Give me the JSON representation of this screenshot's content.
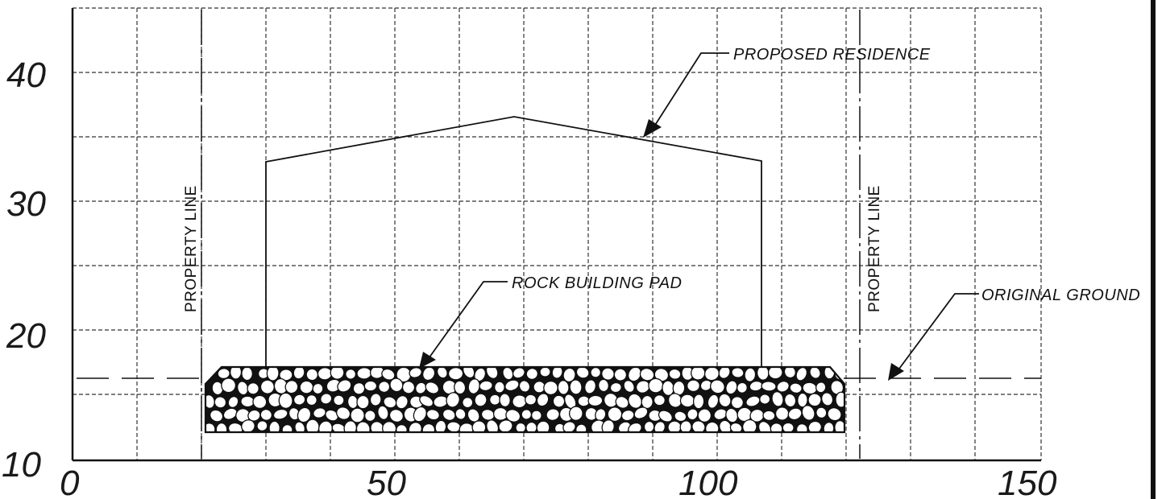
{
  "diagram": {
    "x_ticks": [
      "0",
      "50",
      "100",
      "150"
    ],
    "y_ticks": [
      "10",
      "20",
      "30",
      "40"
    ],
    "labels": {
      "proposed_residence": "PROPOSED RESIDENCE",
      "rock_building_pad": "ROCK BUILDING PAD",
      "original_ground": "ORIGINAL GROUND",
      "property_line_left": "PROPERTY LINE",
      "property_line_right": "PROPERTY LINE"
    },
    "colors": {
      "ink": "#111111",
      "grid": "#333333",
      "paper": "#ffffff"
    }
  }
}
